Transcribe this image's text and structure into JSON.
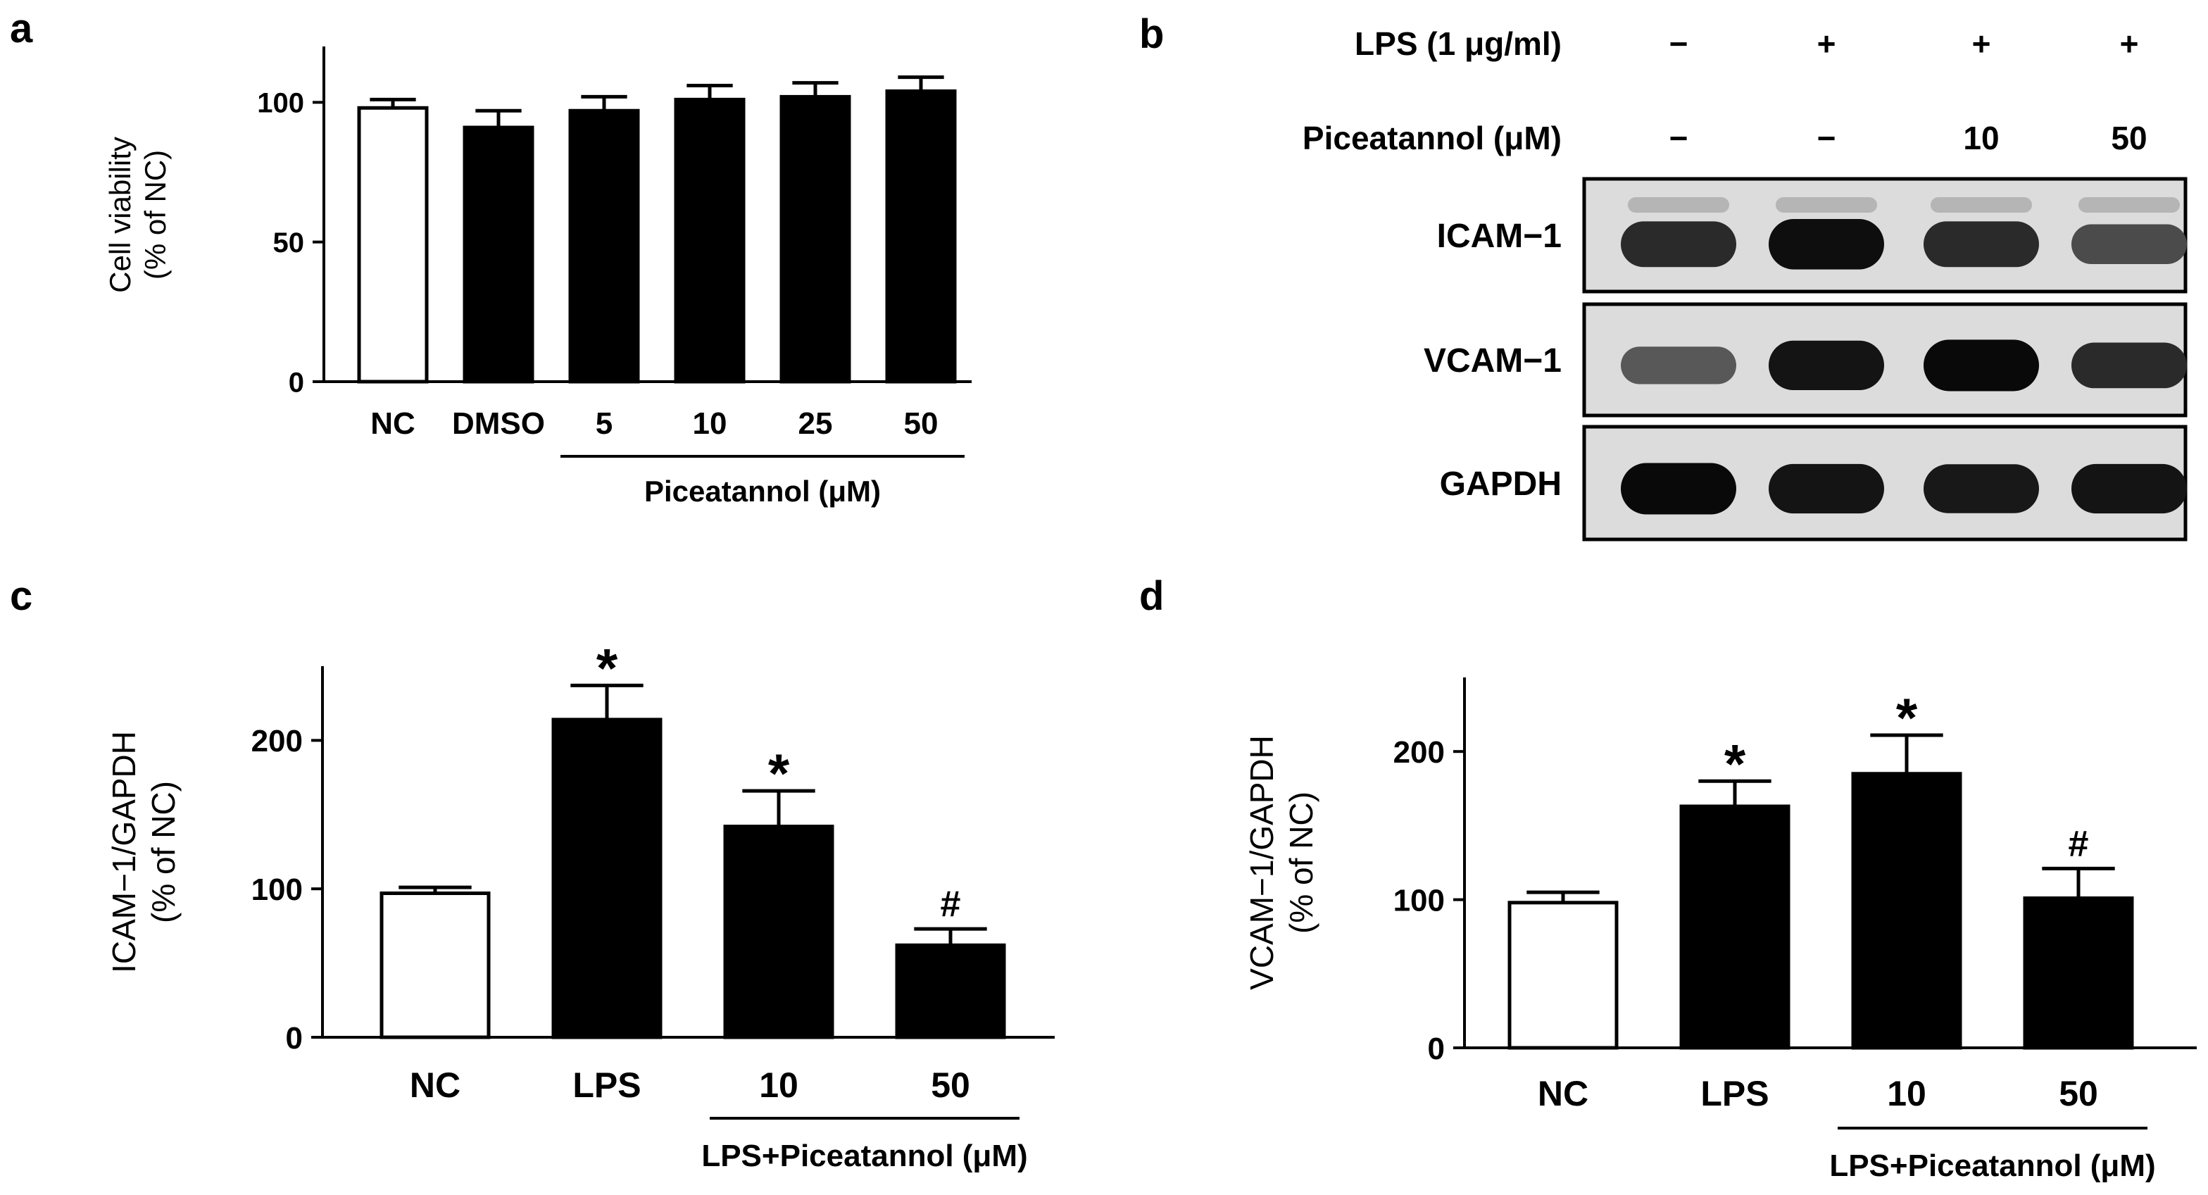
{
  "panels": {
    "a": {
      "letter": "a"
    },
    "b": {
      "letter": "b"
    },
    "c": {
      "letter": "c"
    },
    "d": {
      "letter": "d"
    }
  },
  "chart_data": [
    {
      "panel": "a",
      "type": "bar",
      "ylabel_line1": "Cell viability",
      "ylabel_line2": "(% of NC)",
      "ylim": [
        0,
        120
      ],
      "yticks": [
        0,
        50,
        100
      ],
      "categories": [
        "NC",
        "DMSO",
        "5",
        "10",
        "25",
        "50"
      ],
      "values": [
        98,
        91,
        97,
        101,
        102,
        104
      ],
      "errors": [
        3,
        6,
        5,
        5,
        5,
        5
      ],
      "fills": [
        "white",
        "black",
        "black",
        "black",
        "black",
        "black"
      ],
      "group_label": "Piceatannol (μM)",
      "group_range": [
        2,
        5
      ],
      "annotations": [
        "",
        "",
        "",
        "",
        "",
        ""
      ]
    },
    {
      "panel": "b",
      "type": "blot",
      "condition_rows": [
        {
          "label": "LPS (1 μg/ml)",
          "values": [
            "−",
            "+",
            "+",
            "+"
          ]
        },
        {
          "label": "Piceatannol (μM)",
          "values": [
            "−",
            "−",
            "10",
            "50"
          ]
        }
      ],
      "proteins": [
        {
          "label": "ICAM−1",
          "intensity": [
            0.8,
            0.95,
            0.8,
            0.62
          ]
        },
        {
          "label": "VCAM−1",
          "intensity": [
            0.55,
            0.92,
            0.98,
            0.8
          ]
        },
        {
          "label": "GAPDH",
          "intensity": [
            0.98,
            0.92,
            0.9,
            0.92
          ]
        }
      ]
    },
    {
      "panel": "c",
      "type": "bar",
      "ylabel_line1": "ICAM−1/GAPDH",
      "ylabel_line2": "(% of NC)",
      "ylim": [
        0,
        250
      ],
      "yticks": [
        0,
        100,
        200
      ],
      "categories": [
        "NC",
        "LPS",
        "10",
        "50"
      ],
      "values": [
        97,
        214,
        142,
        62
      ],
      "errors": [
        4,
        23,
        24,
        11
      ],
      "fills": [
        "white",
        "black",
        "black",
        "black"
      ],
      "group_label": "LPS+Piceatannol (μM)",
      "group_range": [
        2,
        3
      ],
      "annotations": [
        "",
        "*",
        "*",
        "#"
      ]
    },
    {
      "panel": "d",
      "type": "bar",
      "ylabel_line1": "VCAM−1/GAPDH",
      "ylabel_line2": "(% of NC)",
      "ylim": [
        0,
        250
      ],
      "yticks": [
        0,
        100,
        200
      ],
      "categories": [
        "NC",
        "LPS",
        "10",
        "50"
      ],
      "values": [
        98,
        163,
        185,
        101
      ],
      "errors": [
        7,
        17,
        26,
        20
      ],
      "fills": [
        "white",
        "black",
        "black",
        "black"
      ],
      "group_label": "LPS+Piceatannol (μM)",
      "group_range": [
        2,
        3
      ],
      "annotations": [
        "",
        "*",
        "*",
        "#"
      ]
    }
  ]
}
